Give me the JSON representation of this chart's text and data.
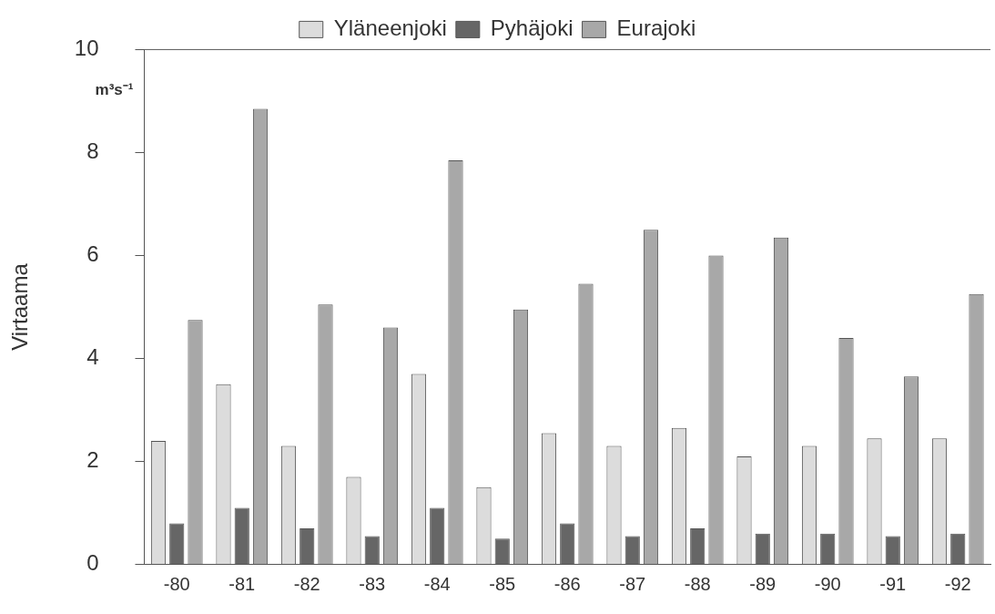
{
  "chart_data": {
    "type": "bar",
    "ylabel": "Virtaama",
    "annotations": [
      "m³s⁻¹"
    ],
    "categories": [
      "-80",
      "-81",
      "-82",
      "-83",
      "-84",
      "-85",
      "-86",
      "-87",
      "-88",
      "-89",
      "-90",
      "-91",
      "-92"
    ],
    "series": [
      {
        "name": "Yläneenjoki",
        "color": "#dcdcdc",
        "values": [
          2.4,
          3.5,
          2.3,
          1.7,
          3.7,
          1.5,
          2.55,
          2.3,
          2.65,
          2.1,
          2.3,
          2.45,
          2.45
        ]
      },
      {
        "name": "Pyhäjoki",
        "color": "#666666",
        "values": [
          0.8,
          1.1,
          0.7,
          0.55,
          1.1,
          0.5,
          0.8,
          0.55,
          0.7,
          0.6,
          0.6,
          0.55,
          0.6
        ]
      },
      {
        "name": "Eurajoki",
        "color": "#a8a8a8",
        "values": [
          4.75,
          8.85,
          5.05,
          4.6,
          7.85,
          4.95,
          5.45,
          6.5,
          6.0,
          6.35,
          4.4,
          3.65,
          5.25
        ]
      }
    ],
    "ylim": [
      0,
      10
    ],
    "yticks": [
      0,
      2,
      4,
      6,
      8,
      10
    ],
    "grid": false,
    "legend": "top"
  }
}
